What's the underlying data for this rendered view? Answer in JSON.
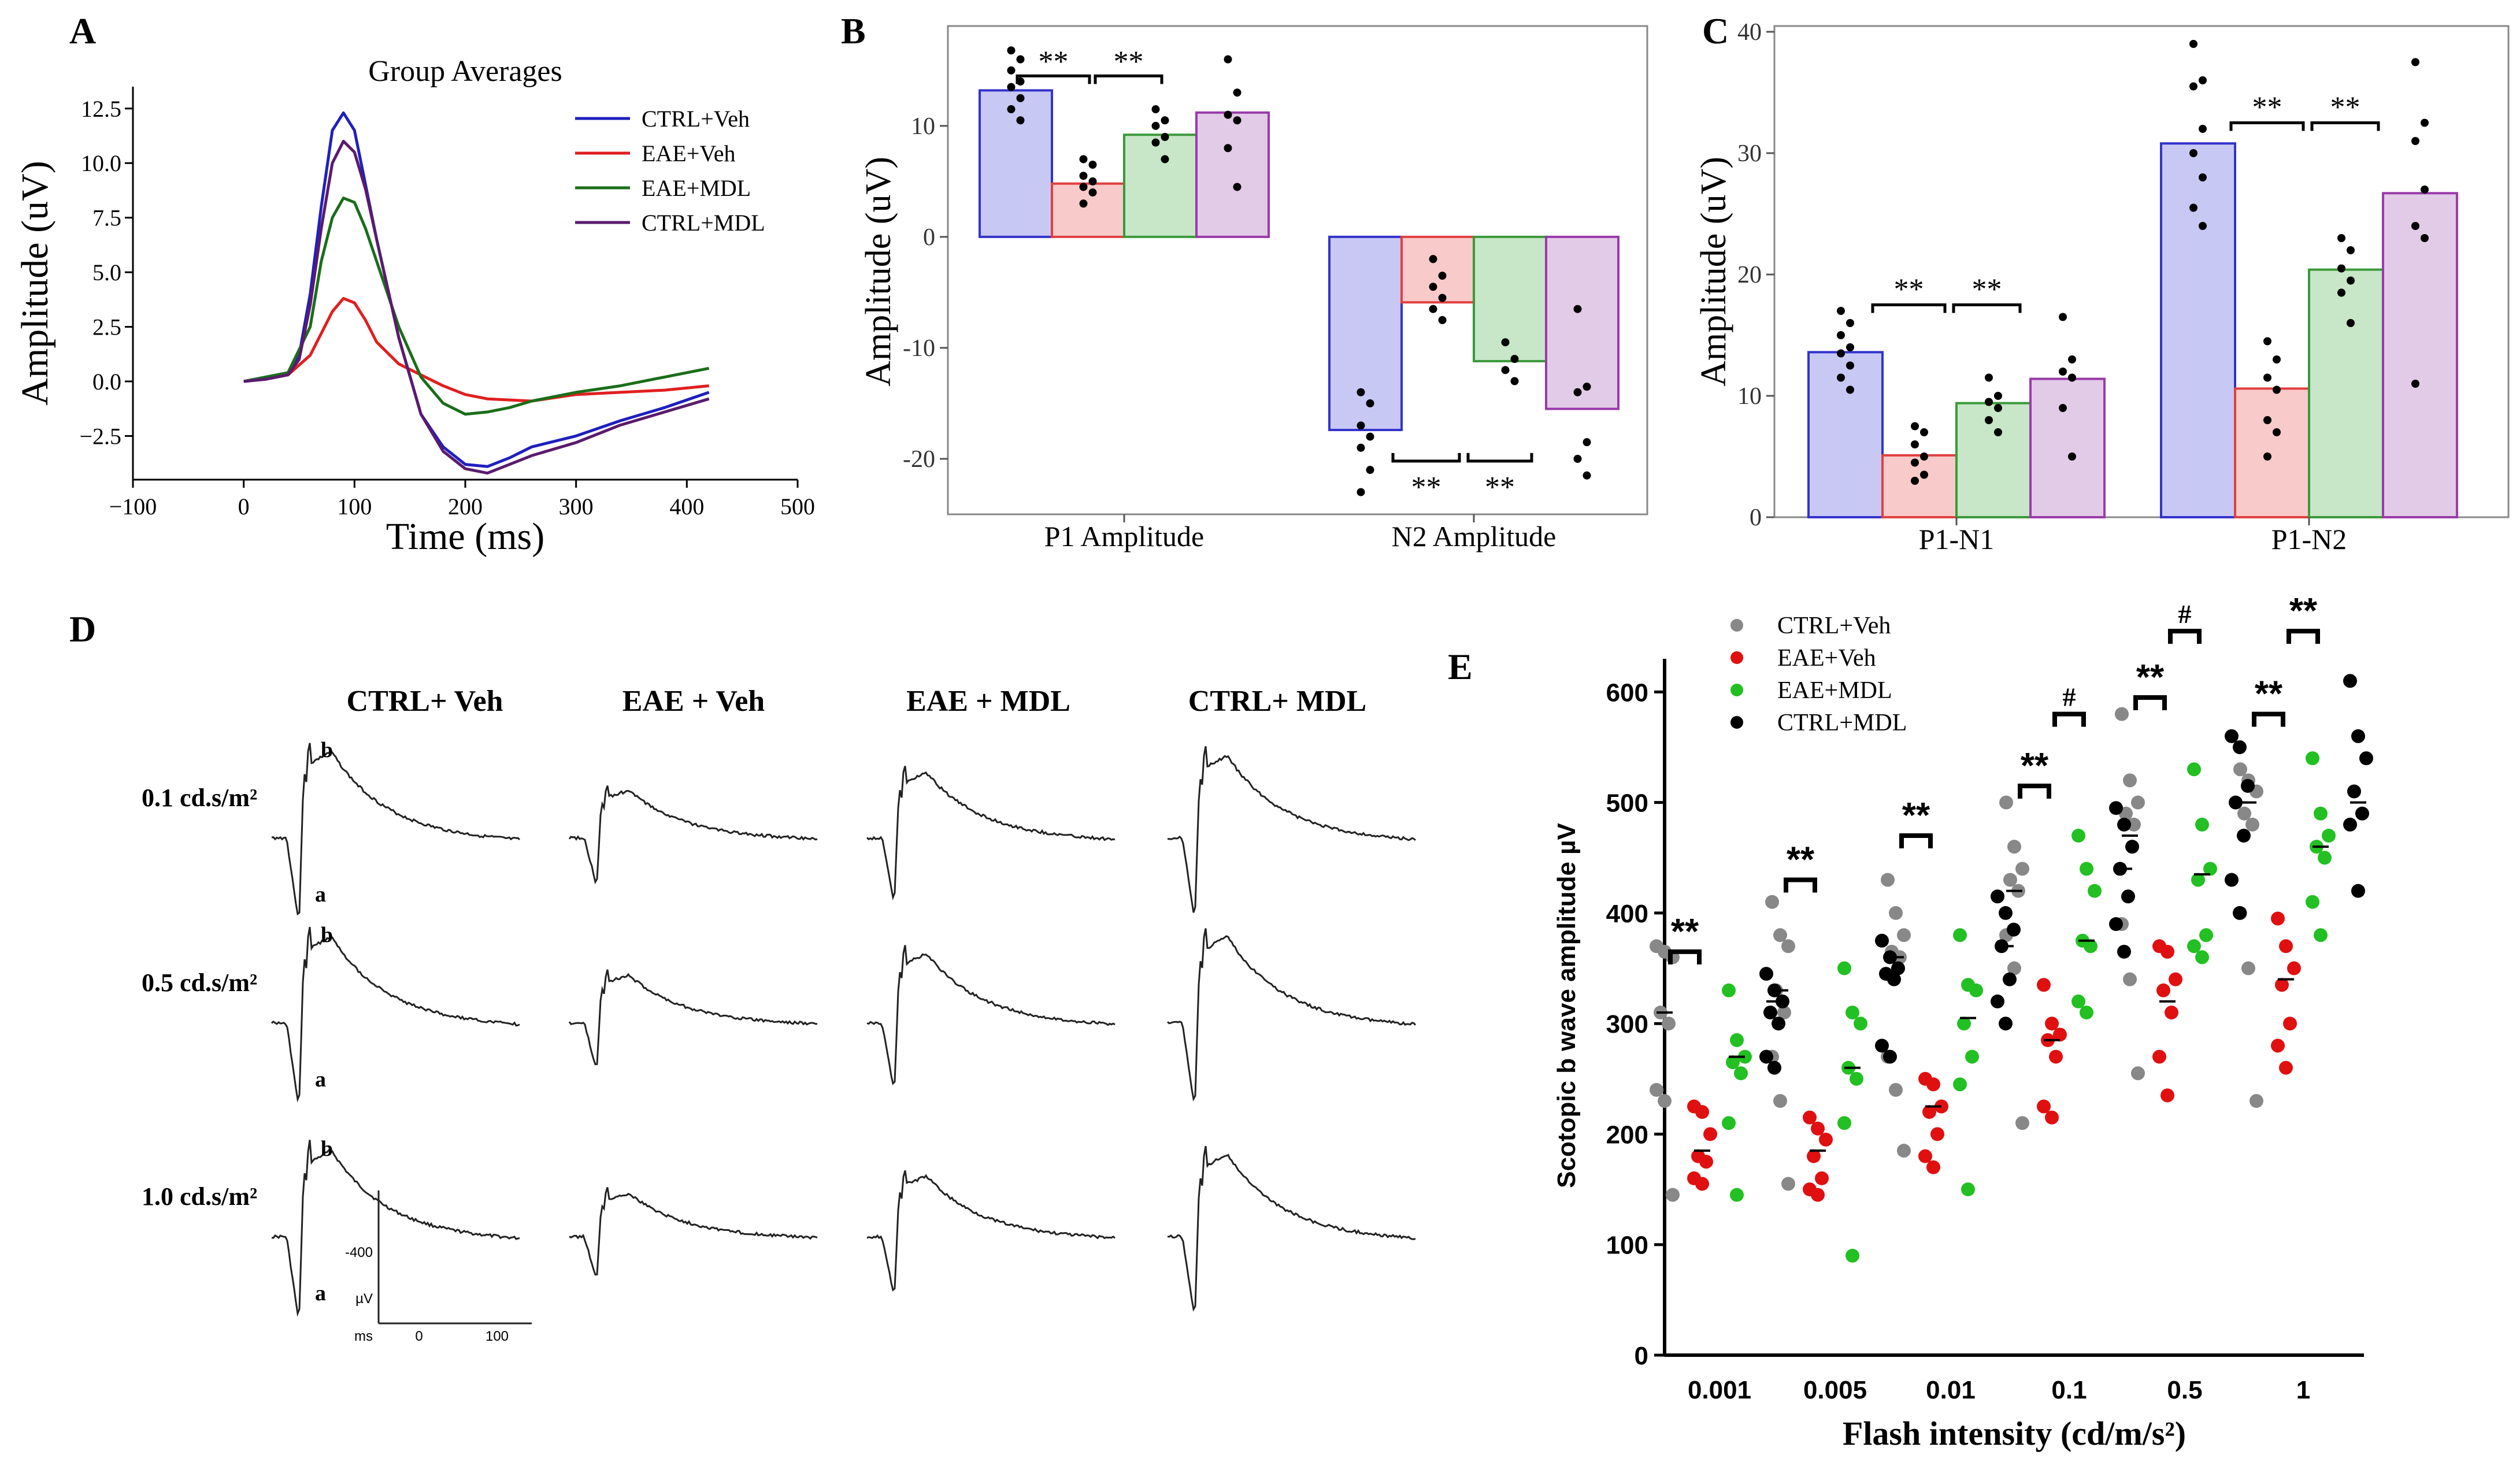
{
  "colors": {
    "ctrl_veh": "#1f1fbf",
    "eae_veh": "#e01f1f",
    "eae_mdl": "#1a6e1a",
    "ctrl_mdl": "#5a1a6e",
    "grey": "#888888",
    "red": "#e01010",
    "green": "#22c022",
    "black": "#000000"
  },
  "panels": {
    "A": "A",
    "B": "B",
    "C": "C",
    "D": "D",
    "E": "E"
  },
  "chart_data": [
    {
      "id": "A",
      "type": "line",
      "title": "Group Averages",
      "xlabel": "Time (ms)",
      "ylabel": "Amplitude (uV)",
      "xlim": [
        -100,
        500
      ],
      "ylim": [
        -4.5,
        13.5
      ],
      "xticks": [
        -100,
        0,
        100,
        200,
        300,
        400,
        500
      ],
      "xtick_labels": [
        "−100",
        "0",
        "100",
        "200",
        "300",
        "400",
        "500"
      ],
      "yticks": [
        -2.5,
        0.0,
        2.5,
        5.0,
        7.5,
        10.0,
        12.5
      ],
      "ytick_labels": [
        "−2.5",
        "0.0",
        "2.5",
        "5.0",
        "7.5",
        "10.0",
        "12.5"
      ],
      "legend": [
        "CTRL+Veh",
        "EAE+Veh",
        "EAE+MDL",
        "CTRL+MDL"
      ],
      "series": [
        {
          "name": "CTRL+Veh",
          "color": "#1f1fbf",
          "x": [
            0,
            20,
            40,
            50,
            60,
            70,
            80,
            90,
            100,
            110,
            120,
            140,
            160,
            180,
            200,
            220,
            240,
            260,
            300,
            340,
            380,
            420
          ],
          "y": [
            0,
            0.2,
            0.4,
            1.2,
            4,
            8,
            11.5,
            12.3,
            11.5,
            9,
            6.5,
            2,
            -1.5,
            -3,
            -3.8,
            -3.9,
            -3.5,
            -3,
            -2.5,
            -1.8,
            -1.2,
            -0.5
          ]
        },
        {
          "name": "EAE+Veh",
          "color": "#e01f1f",
          "x": [
            0,
            20,
            40,
            60,
            80,
            90,
            100,
            110,
            120,
            140,
            160,
            180,
            200,
            220,
            260,
            300,
            340,
            380,
            420
          ],
          "y": [
            0,
            0.1,
            0.3,
            1.2,
            3.2,
            3.8,
            3.6,
            2.8,
            1.8,
            0.8,
            0.3,
            -0.2,
            -0.6,
            -0.8,
            -0.9,
            -0.6,
            -0.5,
            -0.4,
            -0.2
          ]
        },
        {
          "name": "EAE+MDL",
          "color": "#1a6e1a",
          "x": [
            0,
            20,
            40,
            60,
            70,
            80,
            90,
            100,
            110,
            120,
            140,
            160,
            180,
            200,
            220,
            240,
            260,
            300,
            340,
            380,
            420
          ],
          "y": [
            0,
            0.2,
            0.4,
            2.5,
            5.5,
            7.5,
            8.4,
            8.2,
            7,
            5.5,
            2.5,
            0.2,
            -1,
            -1.5,
            -1.4,
            -1.2,
            -0.9,
            -0.5,
            -0.2,
            0.2,
            0.6
          ]
        },
        {
          "name": "CTRL+MDL",
          "color": "#5a1a6e",
          "x": [
            0,
            20,
            40,
            50,
            60,
            70,
            80,
            90,
            100,
            110,
            120,
            140,
            160,
            180,
            200,
            220,
            240,
            260,
            300,
            340,
            380,
            420
          ],
          "y": [
            0,
            0.1,
            0.3,
            1,
            3.5,
            7,
            10,
            11,
            10.5,
            8.8,
            6.5,
            2,
            -1.5,
            -3.2,
            -4,
            -4.2,
            -3.8,
            -3.4,
            -2.8,
            -2,
            -1.4,
            -0.8
          ]
        }
      ]
    },
    {
      "id": "B",
      "type": "bar",
      "xlabel": "",
      "ylabel": "Amplitude (uV)",
      "ylim": [
        -25,
        19
      ],
      "yticks": [
        -20,
        -10,
        0,
        10
      ],
      "ytick_labels": [
        "-20",
        "-10",
        "0",
        "10"
      ],
      "categories": [
        "P1 Amplitude",
        "N2 Amplitude"
      ],
      "series": [
        {
          "name": "CTRL+Veh",
          "values": [
            13.2,
            -17.4
          ]
        },
        {
          "name": "EAE+Veh",
          "values": [
            4.8,
            -5.9
          ]
        },
        {
          "name": "EAE+MDL",
          "values": [
            9.2,
            -11.2
          ]
        },
        {
          "name": "CTRL+MDL",
          "values": [
            11.2,
            -15.5
          ]
        }
      ],
      "points": [
        [
          [
            16.8,
            16,
            15,
            14,
            13.5,
            12.5,
            11.5,
            10.5
          ],
          [
            -14,
            -15,
            -17,
            -18,
            -19,
            -21,
            -23
          ]
        ],
        [
          [
            7,
            6.5,
            5.5,
            5,
            4.5,
            4,
            3
          ]
        ],
        [
          [
            11.5,
            10.5,
            10,
            9,
            8.5,
            7
          ]
        ],
        [
          [
            16,
            13,
            11,
            10.5,
            8,
            4.5
          ]
        ]
      ],
      "points_n2": [
        [
          -14,
          -15,
          -17,
          -18,
          -19,
          -21,
          -23
        ],
        [
          -2,
          -3.5,
          -4.5,
          -5.5,
          -6.5,
          -7.5
        ],
        [
          -9.5,
          -11,
          -12,
          -13
        ],
        [
          -6.5,
          -13.5,
          -14,
          -18.5,
          -20,
          -21.5
        ]
      ],
      "significance": [
        "**",
        "**",
        "**",
        "**"
      ]
    },
    {
      "id": "C",
      "type": "bar",
      "xlabel": "",
      "ylabel": "Amplitude (uV)",
      "ylim": [
        0,
        40
      ],
      "yticks": [
        0,
        10,
        20,
        30,
        40
      ],
      "ytick_labels": [
        "0",
        "10",
        "20",
        "30",
        "40"
      ],
      "categories": [
        "P1-N1",
        "P1-N2"
      ],
      "series": [
        {
          "name": "CTRL+Veh",
          "values": [
            13.6,
            30.8
          ]
        },
        {
          "name": "EAE+Veh",
          "values": [
            5.1,
            10.6
          ]
        },
        {
          "name": "EAE+MDL",
          "values": [
            9.4,
            20.4
          ]
        },
        {
          "name": "CTRL+MDL",
          "values": [
            11.4,
            26.7
          ]
        }
      ],
      "points_p1n1": [
        [
          17,
          16,
          15,
          14,
          13.5,
          12.5,
          11.5,
          10.5
        ],
        [
          7.5,
          7,
          6,
          5,
          4.5,
          3.5,
          3
        ],
        [
          11.5,
          10,
          9.5,
          9,
          8,
          7
        ],
        [
          16.5,
          13,
          12,
          11.5,
          9,
          5
        ]
      ],
      "points_p1n2": [
        [
          39,
          36,
          35.5,
          32,
          30,
          28,
          25.5,
          24
        ],
        [
          14.5,
          13,
          11.5,
          10.5,
          8,
          7,
          5
        ],
        [
          23,
          22,
          20.5,
          19.5,
          18.5,
          16
        ],
        [
          37.5,
          32.5,
          31,
          27,
          24,
          23,
          11
        ]
      ],
      "significance": [
        "**",
        "**",
        "**",
        "**"
      ]
    },
    {
      "id": "E",
      "type": "scatter",
      "xlabel": "Flash intensity (cd/m/s²)",
      "ylabel": "Scotopic b wave amplitude µV",
      "ylim": [
        0,
        630
      ],
      "yticks": [
        0,
        100,
        200,
        300,
        400,
        500,
        600
      ],
      "ytick_labels": [
        "0",
        "100",
        "200",
        "300",
        "400",
        "500",
        "600"
      ],
      "categories": [
        "0.001",
        "0.005",
        "0.01",
        "0.1",
        "0.5",
        "1"
      ],
      "legend": [
        "CTRL+Veh",
        "EAE+Veh",
        "EAE+MDL",
        "CTRL+MDL"
      ],
      "series": [
        {
          "name": "CTRL+Veh",
          "color": "#888888",
          "groups": [
            [
              370,
              365,
              360,
              310,
              300,
              240,
              230,
              145
            ],
            [
              410,
              380,
              370,
              330,
              310,
              270,
              230,
              155
            ],
            [
              430,
              400,
              380,
              365,
              360,
              270,
              240,
              185
            ],
            [
              500,
              460,
              440,
              430,
              420,
              380,
              350,
              210
            ],
            [
              580,
              520,
              500,
              490,
              480,
              390,
              340,
              255
            ],
            [
              530,
              520,
              510,
              490,
              480,
              400,
              350,
              230
            ]
          ]
        },
        {
          "name": "EAE+Veh",
          "color": "#e01010",
          "groups": [
            [
              225,
              220,
              200,
              180,
              175,
              160,
              155
            ],
            [
              215,
              205,
              195,
              180,
              160,
              150,
              145
            ],
            [
              250,
              245,
              225,
              220,
              200,
              180,
              170
            ],
            [
              335,
              300,
              290,
              285,
              270,
              225,
              215
            ],
            [
              370,
              365,
              340,
              330,
              310,
              270,
              235
            ],
            [
              395,
              370,
              350,
              335,
              300,
              280,
              260
            ]
          ]
        },
        {
          "name": "EAE+MDL",
          "color": "#22c022",
          "groups": [
            [
              330,
              285,
              270,
              265,
              255,
              210,
              145
            ],
            [
              350,
              310,
              300,
              260,
              250,
              210,
              90
            ],
            [
              380,
              335,
              330,
              300,
              270,
              245,
              150
            ],
            [
              470,
              440,
              420,
              375,
              370,
              320,
              310
            ],
            [
              530,
              480,
              440,
              430,
              380,
              370,
              360
            ],
            [
              540,
              490,
              470,
              460,
              450,
              410,
              380
            ]
          ]
        },
        {
          "name": "CTRL+MDL",
          "color": "#000000",
          "groups": [
            [
              345,
              330,
              320,
              310,
              300,
              270,
              260
            ],
            [
              375,
              360,
              350,
              345,
              340,
              280,
              270
            ],
            [
              415,
              400,
              385,
              370,
              340,
              320,
              300
            ],
            [
              495,
              480,
              460,
              440,
              415,
              390,
              365
            ],
            [
              560,
              550,
              515,
              500,
              470,
              430,
              400
            ],
            [
              610,
              560,
              540,
              510,
              490,
              480,
              420
            ]
          ]
        }
      ],
      "medians": [
        [
          310,
          185,
          270,
          320
        ],
        [
          330,
          185,
          260,
          345
        ],
        [
          360,
          225,
          305,
          370
        ],
        [
          420,
          285,
          375,
          440
        ],
        [
          470,
          320,
          435,
          500
        ],
        [
          500,
          340,
          460,
          500
        ]
      ],
      "significance": [
        {
          "label": "**",
          "at": "0.001"
        },
        {
          "label": "**",
          "at": "0.005"
        },
        {
          "label": "**",
          "at": "0.01"
        },
        {
          "label": "**",
          "at": "0.1"
        },
        {
          "label": "#",
          "at": "0.1"
        },
        {
          "label": "**",
          "at": "0.5"
        },
        {
          "label": "#",
          "at": "0.5"
        },
        {
          "label": "**",
          "at": "1"
        },
        {
          "label": "**",
          "at": "1"
        }
      ]
    }
  ],
  "panel_d": {
    "columns": [
      "CTRL+ Veh",
      "EAE + Veh",
      "EAE + MDL",
      "CTRL+ MDL"
    ],
    "rows": [
      "0.1 cd.s/m²",
      "0.5 cd.s/m²",
      "1.0 cd.s/m²"
    ],
    "wave_a": "a",
    "wave_b": "b",
    "amplitudes": [
      [
        1.0,
        0.55,
        0.75,
        0.95
      ],
      [
        1.0,
        0.55,
        0.8,
        1.0
      ],
      [
        1.0,
        0.5,
        0.7,
        0.95
      ]
    ],
    "scale_bar": {
      "y_label": "µV",
      "y_value": "-400",
      "x_label": "ms",
      "x_ticks": [
        "0",
        "100"
      ]
    }
  }
}
